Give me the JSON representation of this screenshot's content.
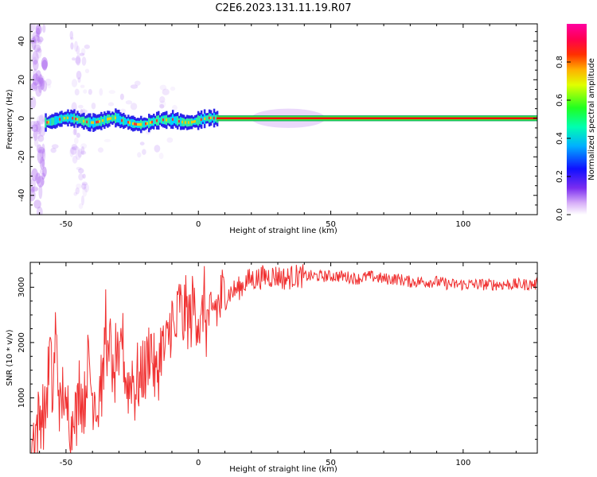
{
  "figure_title": "C2E6.2023.131.11.19.R07",
  "chart_data": [
    {
      "type": "heatmap",
      "title": "C2E6.2023.131.11.19.R07",
      "xlabel": "Height of straight line (km)",
      "ylabel": "Frequency (Hz)",
      "xlim": [
        -63.5,
        128
      ],
      "ylim": [
        -50,
        49
      ],
      "xticks": [
        -50,
        0,
        50,
        100
      ],
      "yticks": [
        -40,
        -20,
        0,
        20,
        40
      ],
      "grid": false,
      "colorbar": {
        "label": "Normalized spectral amplitude",
        "range": [
          0,
          1
        ],
        "ticks": [
          0.0,
          0.2,
          0.4,
          0.6,
          0.8
        ],
        "tick_labels": [
          "0.0",
          "0.2",
          "0.4",
          "0.6",
          "0.8"
        ],
        "colormap": "gist_rainbow",
        "colors": [
          "#ffffff",
          "#8a2be2",
          "#0000ff",
          "#00c8ff",
          "#00ff40",
          "#ffff00",
          "#ff8000",
          "#ff0000",
          "#ff00a0"
        ]
      },
      "features": [
        {
          "x_range": [
            7,
            128
          ],
          "freq_center": 0,
          "freq_halfwidth": 1.5,
          "amplitude": 0.9,
          "description": "steady narrow carrier line"
        },
        {
          "x_range": [
            -58,
            7
          ],
          "freq_center": -1,
          "freq_halfwidth": 4,
          "amplitude": 0.6,
          "description": "wandering broadened band"
        },
        {
          "x_range": [
            20,
            48
          ],
          "freq_center": 0,
          "freq_halfwidth": 5,
          "amplitude": 0.15,
          "description": "faint side bloom"
        }
      ]
    },
    {
      "type": "line",
      "xlabel": "Height of straight line (km)",
      "ylabel": "SNR (10 * v/v)",
      "xlim": [
        -63.5,
        128
      ],
      "ylim": [
        0,
        3450
      ],
      "xticks": [
        -50,
        0,
        50,
        100
      ],
      "yticks": [
        1000,
        2000,
        3000
      ],
      "grid": false,
      "color": "#f03030",
      "series": [
        {
          "x": [
            -63,
            -61,
            -59,
            -58,
            -57,
            -56,
            -55,
            -54,
            -53,
            -52,
            -51,
            -50,
            -49,
            -48,
            -47,
            -46,
            -45,
            -44,
            -43,
            -42,
            -41,
            -40,
            -39,
            -38,
            -37,
            -36,
            -35,
            -34,
            -33,
            -32,
            -31,
            -30,
            -29,
            -28,
            -27,
            -26,
            -25,
            -24,
            -23,
            -22,
            -21,
            -20,
            -19,
            -18,
            -17,
            -16,
            -15,
            -14,
            -13,
            -12,
            -11,
            -10,
            -9,
            -8,
            -7,
            -6,
            -5,
            -4,
            -3,
            -2,
            -1,
            0,
            1,
            2,
            3,
            4,
            5,
            6,
            7,
            8,
            9,
            10,
            12,
            14,
            16,
            18,
            20,
            22,
            25,
            28,
            30,
            33,
            36,
            40,
            45,
            50,
            55,
            60,
            65,
            70,
            75,
            80,
            85,
            90,
            95,
            100,
            105,
            110,
            115,
            120,
            125,
            128
          ],
          "y": [
            200,
            500,
            800,
            600,
            1200,
            1900,
            900,
            2200,
            1400,
            600,
            1300,
            450,
            1000,
            300,
            1100,
            500,
            1300,
            1000,
            900,
            1600,
            1500,
            1000,
            1200,
            700,
            1400,
            1100,
            2600,
            1400,
            2200,
            900,
            2000,
            1100,
            2300,
            1600,
            1250,
            1200,
            1500,
            1100,
            1400,
            1200,
            1600,
            1400,
            1800,
            2000,
            1600,
            1300,
            1600,
            2000,
            1800,
            1900,
            2200,
            2500,
            2000,
            2400,
            2800,
            2300,
            2600,
            2500,
            2400,
            2700,
            2600,
            2500,
            2100,
            2900,
            2300,
            2500,
            2200,
            2700,
            2600,
            2700,
            2800,
            2800,
            2900,
            2950,
            3000,
            3100,
            3150,
            3150,
            3200,
            3200,
            3200,
            3150,
            3200,
            3200,
            3200,
            3200,
            3200,
            3150,
            3200,
            3150,
            3150,
            3100,
            3100,
            3100,
            3050,
            3050,
            3050,
            3050,
            3050,
            3050,
            3050,
            3050
          ]
        }
      ]
    }
  ]
}
